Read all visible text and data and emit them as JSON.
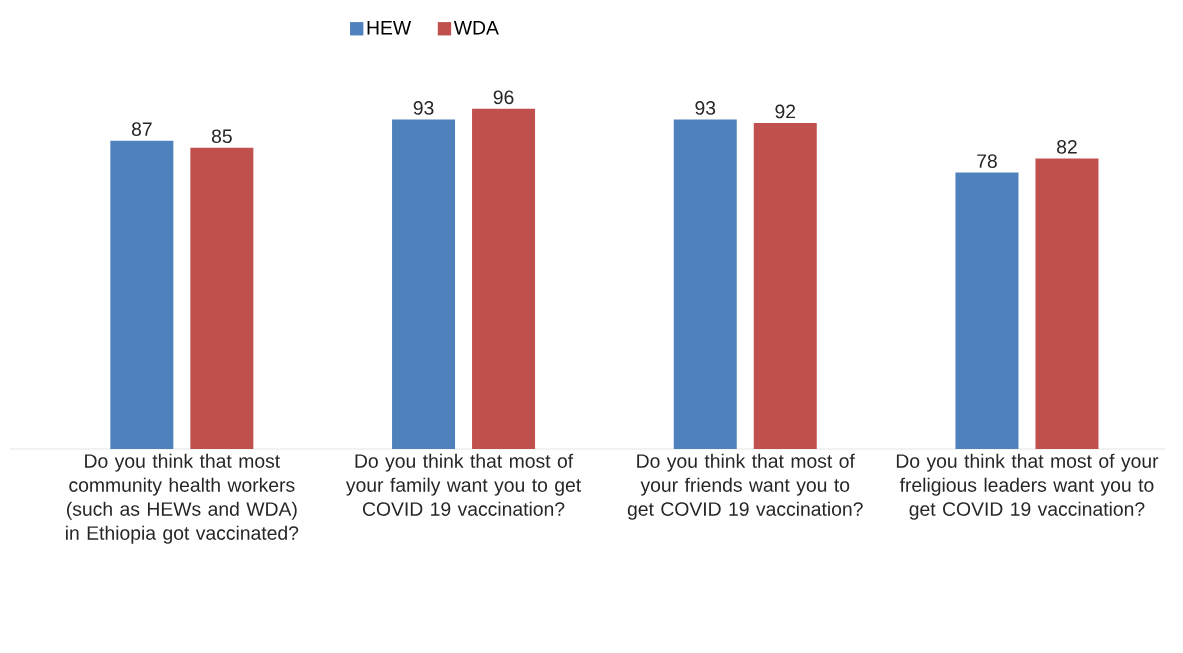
{
  "chart_data": {
    "type": "bar",
    "categories": [
      "Do you think that most community health workers (such as HEWs and WDA) in Ethiopia got vaccinated?",
      "Do you think that most of your family want you to get COVID 19 vaccination?",
      "Do you think that most of your friends want you to get COVID 19 vaccination?",
      "Do you think that most of your freligious leaders want you to get COVID 19 vaccination?"
    ],
    "series": [
      {
        "name": "HEW",
        "color": "#4f81bd",
        "values": [
          87,
          93,
          93,
          78
        ]
      },
      {
        "name": "WDA",
        "color": "#c0504d",
        "values": [
          85,
          96,
          92,
          82
        ]
      }
    ],
    "data_labels": true,
    "legend": "top"
  }
}
